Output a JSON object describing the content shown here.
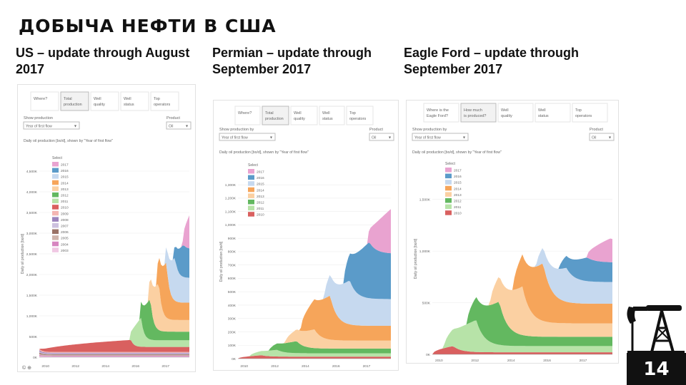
{
  "slide": {
    "title": "ДОБЫЧА НЕФТИ В США",
    "page_number": "14"
  },
  "palette": {
    "2017": "#e9a3d0",
    "2016": "#5b9bc9",
    "2015": "#c6d9ef",
    "2014": "#f6a55a",
    "2013": "#fbd0a2",
    "2012": "#63b860",
    "2011": "#b7e3a8",
    "2010": "#d9605f",
    "2009": "#f4b6b3",
    "2008": "#9d84bd",
    "2007": "#cdc1df",
    "2006": "#9a7266",
    "2005": "#cfb4ab",
    "2004": "#d786c0",
    "2003": "#f0c8e3"
  },
  "panels": [
    {
      "title": "US – update through August 2017",
      "tabs": [
        "Where?",
        "Total production",
        "Well quality",
        "Well status",
        "Top operators"
      ],
      "active_tab": 1,
      "show_prod_label": "Show production",
      "show_prod_value": "Year of first flow",
      "product_label": "Product",
      "product_value": "Oil",
      "chart_caption": "Daily oil production [bo/d], shown by \"Year of first flow\"",
      "legend_title": "Select",
      "y_axis_label": "Daily oil production [bo/d]",
      "footer_icons": "© ⊕"
    },
    {
      "title": "Permian – update through September 2017",
      "tabs": [
        "Where?",
        "Total production",
        "Well quality",
        "Well status",
        "Top operators"
      ],
      "active_tab": 1,
      "show_prod_label": "Show production by",
      "show_prod_value": "Year of first flow",
      "product_label": "Product",
      "product_value": "Oil",
      "chart_caption": "Daily oil production [bo/d], shown by \"Year of first flow\"",
      "legend_title": "Select",
      "y_axis_label": "Daily oil production [bo/d]",
      "footer_icons": ""
    },
    {
      "title": "Eagle Ford – update through September 2017",
      "tabs": [
        "Where is the Eagle Ford?",
        "How much is produced?",
        "Well quality",
        "Well status",
        "Top operators"
      ],
      "active_tab": 1,
      "show_prod_label": "Show production by",
      "show_prod_value": "Year of first flow",
      "product_label": "Product",
      "product_value": "Oil",
      "chart_caption": "Daily oil production [bo/d], shown by \"Year of first flow\"",
      "legend_title": "Select",
      "y_axis_label": "Daily oil production [bo/d]",
      "footer_icons": ""
    }
  ],
  "chart_data": [
    {
      "type": "area",
      "stacked": true,
      "x_start": 2000,
      "x_end": 2017.7,
      "x_ticks": [
        "2010",
        "2012",
        "2014",
        "2016",
        "2017"
      ],
      "ylim": [
        0,
        5000
      ],
      "y_ticks": [
        "0K",
        "500K",
        "1,000K",
        "1,500K",
        "2,000K",
        "2,500K",
        "3,000K",
        "3,500K",
        "4,000K",
        "4,500K"
      ],
      "y_tick_values": [
        0,
        500,
        1000,
        1500,
        2000,
        2500,
        3000,
        3500,
        4000,
        4500
      ],
      "legend": [
        "2017",
        "2016",
        "2015",
        "2014",
        "2013",
        "2012",
        "2011",
        "2010",
        "2009",
        "2008",
        "2007",
        "2006",
        "2005",
        "2004",
        "2003"
      ],
      "series": [
        {
          "name": "2003",
          "start": 2000,
          "peak": 2000,
          "peak_value": 28,
          "decay": 0.12,
          "end_value": 18
        },
        {
          "name": "2004",
          "start": 2000,
          "peak": 2000,
          "peak_value": 28,
          "decay": 0.12,
          "end_value": 18
        },
        {
          "name": "2005",
          "start": 2000,
          "peak": 2000,
          "peak_value": 28,
          "decay": 0.12,
          "end_value": 18
        },
        {
          "name": "2006",
          "start": 2000,
          "peak": 2000,
          "peak_value": 28,
          "decay": 0.12,
          "end_value": 18
        },
        {
          "name": "2007",
          "start": 2000,
          "peak": 2000,
          "peak_value": 28,
          "decay": 0.12,
          "end_value": 18
        },
        {
          "name": "2008",
          "start": 2000,
          "peak": 2000,
          "peak_value": 28,
          "decay": 0.12,
          "end_value": 18
        },
        {
          "name": "2009",
          "start": 2000,
          "peak": 2000,
          "peak_value": 30,
          "decay": 0.12,
          "end_value": 20
        },
        {
          "name": "2010",
          "start": 2000,
          "peak": 2010.8,
          "peak_value": 290,
          "decay": 0.6,
          "end_value": 120
        },
        {
          "name": "2011",
          "start": 2010.7,
          "peak": 2012,
          "peak_value": 700,
          "decay": 0.7,
          "end_value": 160
        },
        {
          "name": "2012",
          "start": 2011.8,
          "peak": 2013.1,
          "peak_value": 1000,
          "decay": 0.75,
          "end_value": 210
        },
        {
          "name": "2013",
          "start": 2012.8,
          "peak": 2014.1,
          "peak_value": 1150,
          "decay": 0.75,
          "end_value": 280
        },
        {
          "name": "2014",
          "start": 2013.8,
          "peak": 2015.0,
          "peak_value": 1350,
          "decay": 0.8,
          "end_value": 420
        },
        {
          "name": "2015",
          "start": 2014.8,
          "peak": 2016.0,
          "peak_value": 1050,
          "decay": 0.85,
          "end_value": 600
        },
        {
          "name": "2016",
          "start": 2015.8,
          "peak": 2017.0,
          "peak_value": 780,
          "decay": 0.9,
          "end_value": 700
        },
        {
          "name": "2017",
          "start": 2016.9,
          "peak": 2017.7,
          "peak_value": 800,
          "decay": 1,
          "end_value": 800
        }
      ]
    },
    {
      "type": "area",
      "stacked": true,
      "x_start": 2010,
      "x_end": 2017.8,
      "x_ticks": [
        "2010",
        "2012",
        "2014",
        "2016",
        "2017"
      ],
      "ylim": [
        0,
        1450
      ],
      "y_ticks": [
        "0K",
        "100K",
        "200K",
        "300K",
        "400K",
        "500K",
        "600K",
        "700K",
        "800K",
        "900K",
        "1,000K",
        "1,100K",
        "1,200K",
        "1,300K"
      ],
      "y_tick_values": [
        0,
        100,
        200,
        300,
        400,
        500,
        600,
        700,
        800,
        900,
        1000,
        1100,
        1200,
        1300
      ],
      "legend": [
        "2017",
        "2016",
        "2015",
        "2014",
        "2013",
        "2012",
        "2011",
        "2010"
      ],
      "series": [
        {
          "name": "2010",
          "start": 2010,
          "peak": 2011.2,
          "peak_value": 25,
          "decay": 0.6,
          "end_value": 15
        },
        {
          "name": "2011",
          "start": 2010.6,
          "peak": 2012,
          "peak_value": 50,
          "decay": 0.6,
          "end_value": 25
        },
        {
          "name": "2012",
          "start": 2011.6,
          "peak": 2013,
          "peak_value": 90,
          "decay": 0.65,
          "end_value": 35
        },
        {
          "name": "2013",
          "start": 2012.4,
          "peak": 2013.9,
          "peak_value": 140,
          "decay": 0.7,
          "end_value": 60
        },
        {
          "name": "2014",
          "start": 2013.2,
          "peak": 2014.7,
          "peak_value": 330,
          "decay": 0.8,
          "end_value": 110
        },
        {
          "name": "2015",
          "start": 2014.4,
          "peak": 2015.7,
          "peak_value": 330,
          "decay": 0.85,
          "end_value": 200
        },
        {
          "name": "2016",
          "start": 2015.4,
          "peak": 2016.7,
          "peak_value": 420,
          "decay": 0.9,
          "end_value": 340
        },
        {
          "name": "2017",
          "start": 2016.6,
          "peak": 2017.8,
          "peak_value": 330,
          "decay": 1,
          "end_value": 330
        }
      ]
    },
    {
      "type": "area",
      "stacked": true,
      "x_start": 2010,
      "x_end": 2017.8,
      "x_ticks": [
        "2010",
        "2012",
        "2014",
        "2016",
        "2017"
      ],
      "ylim": [
        0,
        1850
      ],
      "y_ticks": [
        "0K",
        "500K",
        "1,000K",
        "1,500K"
      ],
      "y_tick_values": [
        0,
        500,
        1000,
        1500
      ],
      "legend": [
        "2017",
        "2016",
        "2015",
        "2014",
        "2013",
        "2012",
        "2011",
        "2010"
      ],
      "series": [
        {
          "name": "2010",
          "start": 2010,
          "peak": 2010.9,
          "peak_value": 80,
          "decay": 0.6,
          "end_value": 20
        },
        {
          "name": "2011",
          "start": 2010.5,
          "peak": 2011.9,
          "peak_value": 310,
          "decay": 0.7,
          "end_value": 60
        },
        {
          "name": "2012",
          "start": 2011.5,
          "peak": 2012.9,
          "peak_value": 420,
          "decay": 0.75,
          "end_value": 90
        },
        {
          "name": "2013",
          "start": 2012.5,
          "peak": 2013.9,
          "peak_value": 470,
          "decay": 0.75,
          "end_value": 130
        },
        {
          "name": "2014",
          "start": 2013.5,
          "peak": 2014.8,
          "peak_value": 560,
          "decay": 0.8,
          "end_value": 190
        },
        {
          "name": "2015",
          "start": 2014.5,
          "peak": 2015.8,
          "peak_value": 330,
          "decay": 0.85,
          "end_value": 210
        },
        {
          "name": "2016",
          "start": 2015.5,
          "peak": 2016.7,
          "peak_value": 230,
          "decay": 0.9,
          "end_value": 190
        },
        {
          "name": "2017",
          "start": 2016.7,
          "peak": 2017.7,
          "peak_value": 230,
          "decay": 1,
          "end_value": 210
        }
      ]
    }
  ]
}
